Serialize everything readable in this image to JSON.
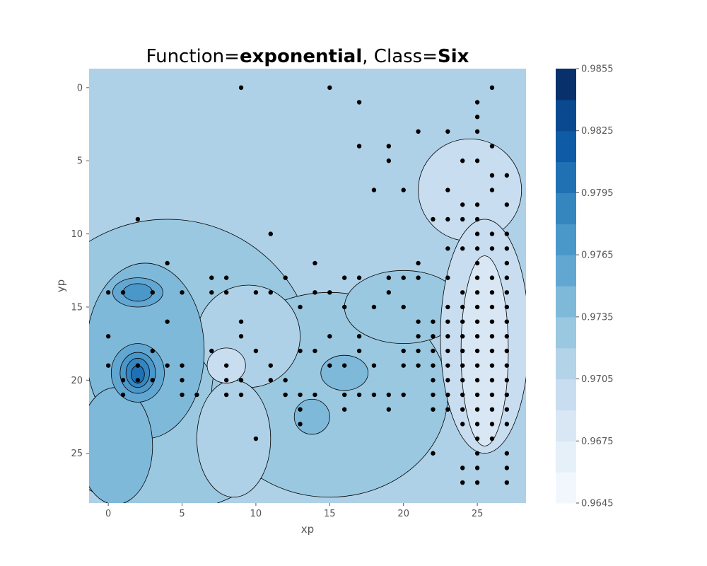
{
  "chart_data": {
    "type": "contour",
    "title": {
      "prefix": "Function=",
      "function": "exponential",
      "separator": ", Class=",
      "class": "Six"
    },
    "xlabel": "xp",
    "ylabel": "yp",
    "xlim": [
      -1.3,
      28.3
    ],
    "ylim": [
      28.4,
      -1.3
    ],
    "xticks": [
      0,
      5,
      10,
      15,
      20,
      25
    ],
    "yticks": [
      0,
      5,
      10,
      15,
      20,
      25
    ],
    "y_inverted": true,
    "grid": false,
    "colormap": "Blues",
    "colorbar": {
      "min": 0.9645,
      "max": 0.9855,
      "step": 0.0015,
      "tick_labels": [
        "0.9645",
        "0.9675",
        "0.9705",
        "0.9735",
        "0.9765",
        "0.9795",
        "0.9825",
        "0.9855"
      ],
      "colors": [
        "#f2f7fd",
        "#e6f0f9",
        "#d9e7f5",
        "#c9ddf0",
        "#b3d3e8",
        "#9ac8e0",
        "#7fb9da",
        "#62a7d2",
        "#4a97c9",
        "#3585bf",
        "#2070b4",
        "#0f5ba5",
        "#0a4990",
        "#08306b"
      ]
    },
    "background_color": "#afd1e7",
    "regions": [
      {
        "level": 0.972,
        "color": "#9ac8e0",
        "cx": 4,
        "cy": 19,
        "rx": 10,
        "ry": 10
      },
      {
        "level": 0.972,
        "color": "#9ac8e0",
        "cx": 15,
        "cy": 21,
        "rx": 8,
        "ry": 7
      },
      {
        "level": 0.972,
        "color": "#9ac8e0",
        "cx": 20,
        "cy": 15,
        "rx": 4,
        "ry": 2.5
      },
      {
        "level": 0.9705,
        "color": "#afd1e7",
        "cx": 9.5,
        "cy": 17,
        "rx": 3.5,
        "ry": 3.5
      },
      {
        "level": 0.9705,
        "color": "#afd1e7",
        "cx": 8.5,
        "cy": 24,
        "rx": 2.5,
        "ry": 4
      },
      {
        "level": 0.969,
        "color": "#c9ddf0",
        "cx": 24.5,
        "cy": 7,
        "rx": 3.5,
        "ry": 3.5
      },
      {
        "level": 0.969,
        "color": "#c9ddf0",
        "cx": 25.5,
        "cy": 17,
        "rx": 3,
        "ry": 8
      },
      {
        "level": 0.969,
        "color": "#c9ddf0",
        "cx": 8,
        "cy": 19,
        "rx": 1.3,
        "ry": 1.2
      },
      {
        "level": 0.9735,
        "color": "#7fb9da",
        "cx": 2.5,
        "cy": 18,
        "rx": 4,
        "ry": 6
      },
      {
        "level": 0.9735,
        "color": "#7fb9da",
        "cx": 0.5,
        "cy": 24.5,
        "rx": 2.5,
        "ry": 4
      },
      {
        "level": 0.9735,
        "color": "#7fb9da",
        "cx": 13.8,
        "cy": 22.5,
        "rx": 1.2,
        "ry": 1.2
      },
      {
        "level": 0.9735,
        "color": "#7fb9da",
        "cx": 16,
        "cy": 19.5,
        "rx": 1.6,
        "ry": 1.2
      },
      {
        "level": 0.9675,
        "color": "#d9e7f5",
        "cx": 25.5,
        "cy": 18,
        "rx": 1.6,
        "ry": 6.5
      },
      {
        "level": 0.975,
        "color": "#62a7d2",
        "cx": 2,
        "cy": 19.5,
        "rx": 1.8,
        "ry": 2
      },
      {
        "level": 0.975,
        "color": "#62a7d2",
        "cx": 2,
        "cy": 14,
        "rx": 1.7,
        "ry": 1
      },
      {
        "level": 0.9765,
        "color": "#4a97c9",
        "cx": 2,
        "cy": 19.5,
        "rx": 1.2,
        "ry": 1.4
      },
      {
        "level": 0.9765,
        "color": "#4a97c9",
        "cx": 2,
        "cy": 14,
        "rx": 1,
        "ry": 0.6
      },
      {
        "level": 0.978,
        "color": "#3585bf",
        "cx": 2,
        "cy": 19.5,
        "rx": 0.8,
        "ry": 1
      },
      {
        "level": 0.9795,
        "color": "#2070b4",
        "cx": 2,
        "cy": 19.6,
        "rx": 0.45,
        "ry": 0.6
      }
    ],
    "points": [
      [
        9,
        0
      ],
      [
        15,
        0
      ],
      [
        26,
        0
      ],
      [
        17,
        1
      ],
      [
        25,
        1
      ],
      [
        25,
        2
      ],
      [
        21,
        3
      ],
      [
        23,
        3
      ],
      [
        25,
        3
      ],
      [
        17,
        4
      ],
      [
        19,
        4
      ],
      [
        26,
        4
      ],
      [
        19,
        5
      ],
      [
        24,
        5
      ],
      [
        25,
        5
      ],
      [
        26,
        6
      ],
      [
        27,
        6
      ],
      [
        18,
        7
      ],
      [
        20,
        7
      ],
      [
        23,
        7
      ],
      [
        26,
        7
      ],
      [
        24,
        8
      ],
      [
        25,
        8
      ],
      [
        27,
        8
      ],
      [
        2,
        9
      ],
      [
        22,
        9
      ],
      [
        23,
        9
      ],
      [
        24,
        9
      ],
      [
        25,
        9
      ],
      [
        11,
        10
      ],
      [
        25,
        10
      ],
      [
        26,
        10
      ],
      [
        27,
        10
      ],
      [
        23,
        11
      ],
      [
        24,
        11
      ],
      [
        25,
        11
      ],
      [
        26,
        11
      ],
      [
        27,
        11
      ],
      [
        4,
        12
      ],
      [
        14,
        12
      ],
      [
        21,
        12
      ],
      [
        25,
        12
      ],
      [
        27,
        12
      ],
      [
        7,
        13
      ],
      [
        8,
        13
      ],
      [
        12,
        13
      ],
      [
        16,
        13
      ],
      [
        17,
        13
      ],
      [
        19,
        13
      ],
      [
        20,
        13
      ],
      [
        21,
        13
      ],
      [
        23,
        13
      ],
      [
        25,
        13
      ],
      [
        26,
        13
      ],
      [
        27,
        13
      ],
      [
        0,
        14
      ],
      [
        1,
        14
      ],
      [
        3,
        14
      ],
      [
        5,
        14
      ],
      [
        7,
        14
      ],
      [
        8,
        14
      ],
      [
        10,
        14
      ],
      [
        11,
        14
      ],
      [
        14,
        14
      ],
      [
        15,
        14
      ],
      [
        19,
        14
      ],
      [
        24,
        14
      ],
      [
        25,
        14
      ],
      [
        26,
        14
      ],
      [
        27,
        14
      ],
      [
        13,
        15
      ],
      [
        16,
        15
      ],
      [
        18,
        15
      ],
      [
        20,
        15
      ],
      [
        23,
        15
      ],
      [
        24,
        15
      ],
      [
        25,
        15
      ],
      [
        26,
        15
      ],
      [
        27,
        15
      ],
      [
        4,
        16
      ],
      [
        9,
        16
      ],
      [
        21,
        16
      ],
      [
        22,
        16
      ],
      [
        23,
        16
      ],
      [
        24,
        16
      ],
      [
        25,
        16
      ],
      [
        26,
        16
      ],
      [
        27,
        16
      ],
      [
        0,
        17
      ],
      [
        9,
        17
      ],
      [
        15,
        17
      ],
      [
        17,
        17
      ],
      [
        21,
        17
      ],
      [
        22,
        17
      ],
      [
        23,
        17
      ],
      [
        24,
        17
      ],
      [
        25,
        17
      ],
      [
        26,
        17
      ],
      [
        27,
        17
      ],
      [
        3,
        18
      ],
      [
        7,
        18
      ],
      [
        10,
        18
      ],
      [
        13,
        18
      ],
      [
        14,
        18
      ],
      [
        17,
        18
      ],
      [
        20,
        18
      ],
      [
        21,
        18
      ],
      [
        22,
        18
      ],
      [
        23,
        18
      ],
      [
        24,
        18
      ],
      [
        25,
        18
      ],
      [
        26,
        18
      ],
      [
        27,
        18
      ],
      [
        0,
        19
      ],
      [
        2,
        19
      ],
      [
        4,
        19
      ],
      [
        5,
        19
      ],
      [
        8,
        19
      ],
      [
        11,
        19
      ],
      [
        15,
        19
      ],
      [
        16,
        19
      ],
      [
        18,
        19
      ],
      [
        20,
        19
      ],
      [
        21,
        19
      ],
      [
        22,
        19
      ],
      [
        23,
        19
      ],
      [
        24,
        19
      ],
      [
        25,
        19
      ],
      [
        26,
        19
      ],
      [
        27,
        19
      ],
      [
        1,
        20
      ],
      [
        2,
        20
      ],
      [
        3,
        20
      ],
      [
        5,
        20
      ],
      [
        8,
        20
      ],
      [
        9,
        20
      ],
      [
        11,
        20
      ],
      [
        12,
        20
      ],
      [
        22,
        20
      ],
      [
        23,
        20
      ],
      [
        24,
        20
      ],
      [
        25,
        20
      ],
      [
        26,
        20
      ],
      [
        27,
        20
      ],
      [
        1,
        21
      ],
      [
        5,
        21
      ],
      [
        6,
        21
      ],
      [
        8,
        21
      ],
      [
        9,
        21
      ],
      [
        12,
        21
      ],
      [
        13,
        21
      ],
      [
        14,
        21
      ],
      [
        16,
        21
      ],
      [
        17,
        21
      ],
      [
        18,
        21
      ],
      [
        19,
        21
      ],
      [
        20,
        21
      ],
      [
        22,
        21
      ],
      [
        23,
        21
      ],
      [
        24,
        21
      ],
      [
        25,
        21
      ],
      [
        26,
        21
      ],
      [
        27,
        21
      ],
      [
        13,
        22
      ],
      [
        16,
        22
      ],
      [
        19,
        22
      ],
      [
        22,
        22
      ],
      [
        23,
        22
      ],
      [
        24,
        22
      ],
      [
        25,
        22
      ],
      [
        26,
        22
      ],
      [
        27,
        22
      ],
      [
        13,
        23
      ],
      [
        24,
        23
      ],
      [
        25,
        23
      ],
      [
        26,
        23
      ],
      [
        27,
        23
      ],
      [
        10,
        24
      ],
      [
        25,
        24
      ],
      [
        26,
        24
      ],
      [
        22,
        25
      ],
      [
        25,
        25
      ],
      [
        27,
        25
      ],
      [
        24,
        26
      ],
      [
        25,
        26
      ],
      [
        27,
        26
      ],
      [
        24,
        27
      ],
      [
        25,
        27
      ],
      [
        27,
        27
      ]
    ]
  }
}
